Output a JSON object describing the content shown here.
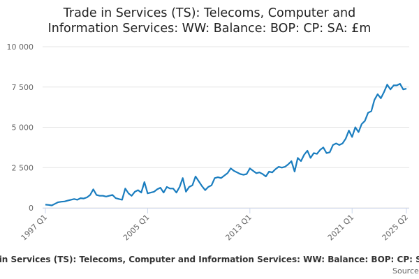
{
  "chart_data": {
    "type": "line",
    "title": "Trade in Services (TS): Telecoms, Computer and Information Services: WW: Balance: BOP: CP: SA: £m",
    "categories": [
      "1997 Q1",
      null,
      null,
      null,
      null,
      null,
      null,
      null,
      null,
      null,
      null,
      null,
      null,
      null,
      null,
      null,
      null,
      null,
      null,
      null,
      null,
      null,
      null,
      null,
      null,
      null,
      null,
      null,
      null,
      null,
      null,
      null,
      "2005 Q1",
      null,
      null,
      null,
      null,
      null,
      null,
      null,
      null,
      null,
      null,
      null,
      null,
      null,
      null,
      null,
      null,
      null,
      null,
      null,
      null,
      null,
      null,
      null,
      null,
      null,
      null,
      null,
      null,
      null,
      null,
      null,
      "2013 Q1",
      null,
      null,
      null,
      null,
      null,
      null,
      null,
      null,
      null,
      null,
      null,
      null,
      null,
      null,
      null,
      null,
      null,
      null,
      null,
      null,
      null,
      null,
      null,
      null,
      null,
      null,
      null,
      null,
      null,
      null,
      null,
      "2021 Q1",
      null,
      null,
      null,
      null,
      null,
      null,
      null,
      null,
      null,
      null,
      null,
      null,
      null,
      null,
      null,
      null,
      "2025 Q2"
    ],
    "series": [
      {
        "name": "Trade in Services (TS): Telecoms, Computer and Information Services: WW: Balance: BOP: CP: SA: £m",
        "color": "#1a7dbf",
        "values": [
          200,
          180,
          150,
          250,
          350,
          380,
          400,
          450,
          500,
          550,
          500,
          600,
          580,
          650,
          800,
          1150,
          800,
          750,
          750,
          700,
          750,
          800,
          600,
          550,
          500,
          1200,
          900,
          750,
          1000,
          1100,
          950,
          1600,
          900,
          950,
          1000,
          1150,
          1250,
          950,
          1300,
          1200,
          1200,
          950,
          1300,
          1850,
          1000,
          1300,
          1400,
          1950,
          1650,
          1350,
          1100,
          1300,
          1400,
          1850,
          1900,
          1850,
          2000,
          2150,
          2450,
          2300,
          2200,
          2100,
          2050,
          2100,
          2450,
          2300,
          2150,
          2200,
          2100,
          1950,
          2250,
          2200,
          2400,
          2550,
          2500,
          2550,
          2700,
          2900,
          2250,
          3100,
          2900,
          3300,
          3550,
          3100,
          3400,
          3350,
          3600,
          3750,
          3400,
          3450,
          3900,
          4000,
          3900,
          4000,
          4300,
          4800,
          4400,
          5000,
          4700,
          5200,
          5400,
          5900,
          6000,
          6700,
          7050,
          6800,
          7200,
          7650,
          7350,
          7600,
          7600,
          7700,
          7350,
          7400
        ]
      }
    ],
    "ylim": [
      0,
      10000
    ],
    "yticks": [
      0,
      {
        "value": 2500,
        "label": "2 500"
      },
      {
        "value": 5000,
        "label": "5 000"
      },
      {
        "value": 7500,
        "label": "7 500"
      },
      {
        "value": 10000,
        "label": "10 000"
      }
    ],
    "grid": true,
    "source": "Source:"
  }
}
